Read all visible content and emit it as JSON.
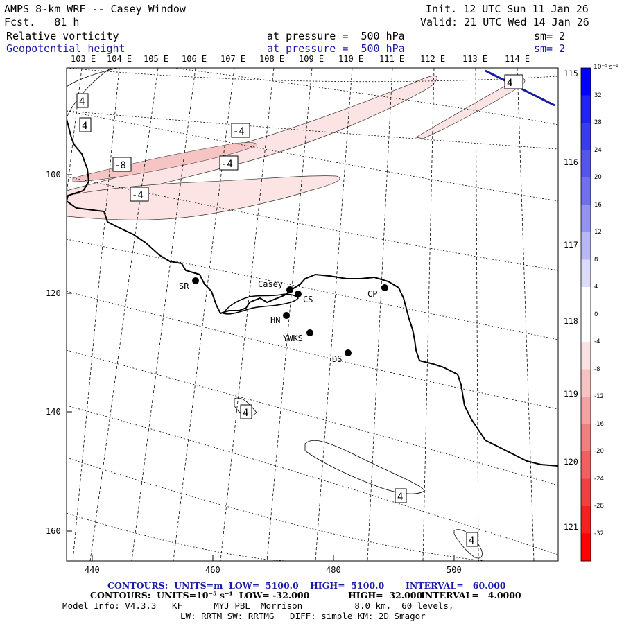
{
  "header": {
    "title": "AMPS 8-km WRF -- Casey Window",
    "fcst": "Fcst.   81 h",
    "init": "Init. 12 UTC Sun 11 Jan 26",
    "valid": "Valid: 21 UTC Wed 14 Jan 26",
    "field1_name": "Relative vorticity",
    "field1_level": "at pressure =  500 hPa",
    "field1_sm": "sm= 2",
    "field2_name": "Geopotential height",
    "field2_level": "at pressure =  500 hPa",
    "field2_sm": "sm= 2"
  },
  "axes": {
    "lon_top": [
      "103 E",
      "104 E",
      "105 E",
      "106 E",
      "107 E",
      "108 E",
      "109 E",
      "110 E",
      "111 E",
      "112 E",
      "113 E",
      "114 E"
    ],
    "lon_right": [
      "115 E",
      "116 E",
      "117 E",
      "118 E",
      "119 E",
      "120 E",
      "121 E"
    ],
    "x_ticks": [
      "440",
      "460",
      "480",
      "500"
    ],
    "y_ticks": [
      "100",
      "120",
      "140",
      "160"
    ]
  },
  "stations": [
    {
      "name": "SR"
    },
    {
      "name": "Casey"
    },
    {
      "name": "CS"
    },
    {
      "name": "CP"
    },
    {
      "name": "HN"
    },
    {
      "name": "YWKS"
    },
    {
      "name": "DS"
    }
  ],
  "contour_labels": [
    "4",
    "4",
    "4",
    "-4",
    "-4",
    "-4",
    "-8",
    "4",
    "4",
    "4"
  ],
  "colorbar": {
    "unit_label": "10⁻⁵ s⁻¹",
    "ticks": [
      "32",
      "28",
      "24",
      "20",
      "16",
      "12",
      "8",
      "4",
      "0",
      "-4",
      "-8",
      "-12",
      "-16",
      "-20",
      "-24",
      "-28",
      "-32"
    ],
    "colors": [
      "#0000ff",
      "#2222f4",
      "#3b3bee",
      "#5555ea",
      "#7070ec",
      "#9494f0",
      "#b8b8f6",
      "#dcdcfa",
      "#ffffff",
      "#ffffff",
      "#fbe2e2",
      "#f7c2c2",
      "#f3a2a2",
      "#f08080",
      "#f06060",
      "#f04040",
      "#f52020",
      "#ff0000"
    ],
    "top_color": "#0000ff",
    "bottom_color": "#ff0000"
  },
  "footer": {
    "contours1_a": "CONTOURS:  UNITS=m  LOW=  5100.0",
    "contours1_b": "HIGH=  5100.0",
    "contours1_c": "INTERVAL=   60.000",
    "contours2_a": "CONTOURS:  UNITS=10⁻⁵ s⁻¹  LOW= -32.000",
    "contours2_b": "HIGH=  32.000",
    "contours2_c": "INTERVAL=   4.0000",
    "model_info": "Model Info: V4.3.3   KF      MYJ PBL  Morrison          8.0 km,  60 levels,",
    "model_info2": "LW: RRTM SW: RRTMG   DIFF: simple KM: 2D Smagor"
  }
}
